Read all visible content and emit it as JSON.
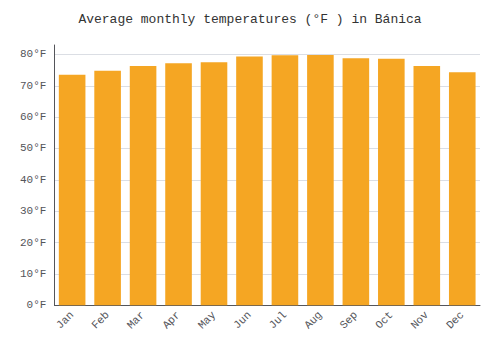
{
  "chart_data": {
    "type": "bar",
    "title": "Average monthly temperatures (°F ) in Bánica",
    "categories": [
      "Jan",
      "Feb",
      "Mar",
      "Apr",
      "May",
      "Jun",
      "Jul",
      "Aug",
      "Sep",
      "Oct",
      "Nov",
      "Dec"
    ],
    "values": [
      73.5,
      74.8,
      76.3,
      77.2,
      77.5,
      79.3,
      79.7,
      79.8,
      78.8,
      78.6,
      76.3,
      74.3
    ],
    "color": "#F5A623",
    "ylim": [
      0,
      83
    ],
    "yticks": [
      {
        "value": 0,
        "label": "0°F"
      },
      {
        "value": 10,
        "label": "10°F"
      },
      {
        "value": 20,
        "label": "20°F"
      },
      {
        "value": 30,
        "label": "30°F"
      },
      {
        "value": 40,
        "label": "40°F"
      },
      {
        "value": 50,
        "label": "50°F"
      },
      {
        "value": 60,
        "label": "60°F"
      },
      {
        "value": 70,
        "label": "70°F"
      },
      {
        "value": 80,
        "label": "80°F"
      }
    ],
    "grid": true
  }
}
